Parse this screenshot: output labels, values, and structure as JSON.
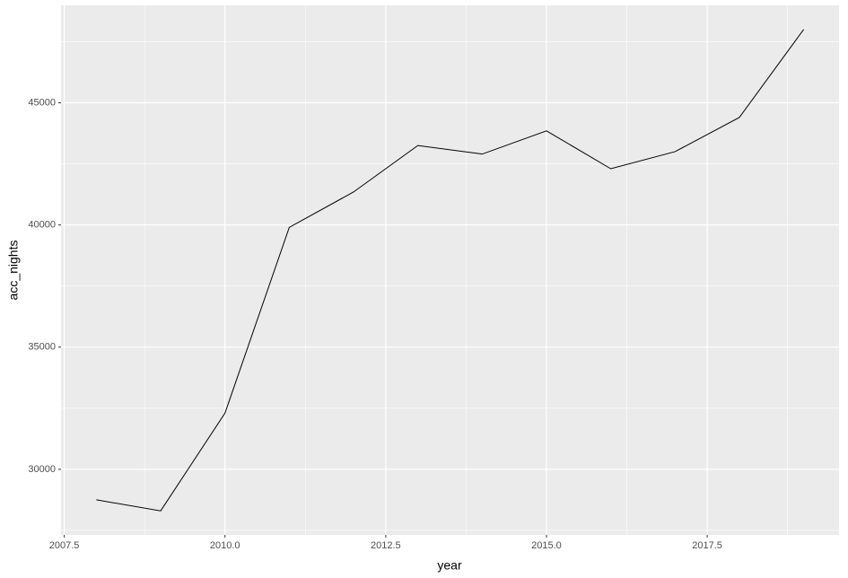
{
  "chart_data": {
    "type": "line",
    "x_label": "year",
    "y_label": "acc_nights",
    "x": [
      2008,
      2009,
      2010,
      2011,
      2012,
      2013,
      2014,
      2015,
      2016,
      2017,
      2018,
      2019
    ],
    "series": [
      {
        "color": "#000000",
        "values": [
          28750,
          28300,
          32300,
          39900,
          41350,
          43250,
          42900,
          43850,
          42300,
          43000,
          44400,
          48000
        ]
      }
    ],
    "xlim": [
      2007.45,
      2019.55
    ],
    "ylim": [
      27315,
      48985
    ],
    "xticks": [
      {
        "value": 2007.5,
        "label": "2007.5"
      },
      {
        "value": 2010,
        "label": "2010.0"
      },
      {
        "value": 2012.5,
        "label": "2012.5"
      },
      {
        "value": 2015,
        "label": "2015.0"
      },
      {
        "value": 2017.5,
        "label": "2017.5"
      }
    ],
    "yticks": [
      30000,
      35000,
      40000,
      45000
    ],
    "grid": true
  }
}
